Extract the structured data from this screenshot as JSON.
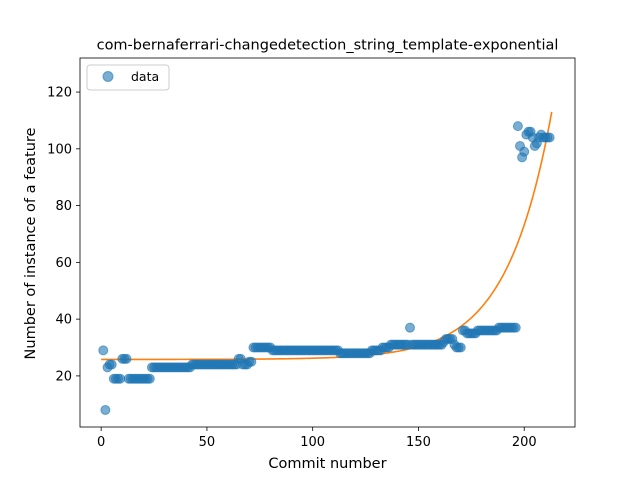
{
  "chart_data": {
    "type": "scatter",
    "title": "com-bernaferrari-changedetection_string_template-exponential",
    "xlabel": "Commit number",
    "ylabel": "Number of instance of a feature",
    "xlim": [
      -10,
      224
    ],
    "ylim": [
      2,
      132
    ],
    "xticks": [
      0,
      50,
      100,
      150,
      200
    ],
    "yticks": [
      20,
      40,
      60,
      80,
      100,
      120
    ],
    "xtick_labels": [
      "0",
      "50",
      "100",
      "150",
      "200"
    ],
    "ytick_labels": [
      "20",
      "40",
      "60",
      "80",
      "100",
      "120"
    ],
    "grid": false,
    "legend": {
      "placement": "top-left",
      "entries": [
        "data"
      ]
    },
    "colors": {
      "data": "#1f77b4",
      "fit": "#ff7f0e"
    },
    "series": [
      {
        "name": "data",
        "kind": "scatter",
        "points": [
          [
            1,
            29
          ],
          [
            2,
            8
          ],
          [
            3,
            23
          ],
          [
            4,
            24
          ],
          [
            5,
            24
          ],
          [
            6,
            19
          ],
          [
            7,
            19
          ],
          [
            8,
            19
          ],
          [
            9,
            19
          ],
          [
            10,
            26
          ],
          [
            11,
            26
          ],
          [
            12,
            26
          ],
          [
            13,
            19
          ],
          [
            14,
            19
          ],
          [
            15,
            19
          ],
          [
            16,
            19
          ],
          [
            17,
            19
          ],
          [
            18,
            19
          ],
          [
            19,
            19
          ],
          [
            20,
            19
          ],
          [
            21,
            19
          ],
          [
            22,
            19
          ],
          [
            23,
            19
          ],
          [
            24,
            23
          ],
          [
            25,
            23
          ],
          [
            26,
            23
          ],
          [
            27,
            23
          ],
          [
            28,
            23
          ],
          [
            29,
            23
          ],
          [
            30,
            23
          ],
          [
            31,
            23
          ],
          [
            32,
            23
          ],
          [
            33,
            23
          ],
          [
            34,
            23
          ],
          [
            35,
            23
          ],
          [
            36,
            23
          ],
          [
            37,
            23
          ],
          [
            38,
            23
          ],
          [
            39,
            23
          ],
          [
            40,
            23
          ],
          [
            41,
            23
          ],
          [
            42,
            23
          ],
          [
            43,
            24
          ],
          [
            44,
            24
          ],
          [
            45,
            24
          ],
          [
            46,
            24
          ],
          [
            47,
            24
          ],
          [
            48,
            24
          ],
          [
            49,
            24
          ],
          [
            50,
            24
          ],
          [
            51,
            24
          ],
          [
            52,
            24
          ],
          [
            53,
            24
          ],
          [
            54,
            24
          ],
          [
            55,
            24
          ],
          [
            56,
            24
          ],
          [
            57,
            24
          ],
          [
            58,
            24
          ],
          [
            59,
            24
          ],
          [
            60,
            24
          ],
          [
            61,
            24
          ],
          [
            62,
            24
          ],
          [
            63,
            24
          ],
          [
            64,
            24
          ],
          [
            65,
            26
          ],
          [
            66,
            26
          ],
          [
            67,
            24
          ],
          [
            68,
            24
          ],
          [
            69,
            24
          ],
          [
            70,
            25
          ],
          [
            71,
            25
          ],
          [
            72,
            30
          ],
          [
            73,
            30
          ],
          [
            74,
            30
          ],
          [
            75,
            30
          ],
          [
            76,
            30
          ],
          [
            77,
            30
          ],
          [
            78,
            30
          ],
          [
            79,
            30
          ],
          [
            80,
            30
          ],
          [
            81,
            29
          ],
          [
            82,
            29
          ],
          [
            83,
            29
          ],
          [
            84,
            29
          ],
          [
            85,
            29
          ],
          [
            86,
            29
          ],
          [
            87,
            29
          ],
          [
            88,
            29
          ],
          [
            89,
            29
          ],
          [
            90,
            29
          ],
          [
            91,
            29
          ],
          [
            92,
            29
          ],
          [
            93,
            29
          ],
          [
            94,
            29
          ],
          [
            95,
            29
          ],
          [
            96,
            29
          ],
          [
            97,
            29
          ],
          [
            98,
            29
          ],
          [
            99,
            29
          ],
          [
            100,
            29
          ],
          [
            101,
            29
          ],
          [
            102,
            29
          ],
          [
            103,
            29
          ],
          [
            104,
            29
          ],
          [
            105,
            29
          ],
          [
            106,
            29
          ],
          [
            107,
            29
          ],
          [
            108,
            29
          ],
          [
            109,
            29
          ],
          [
            110,
            29
          ],
          [
            111,
            29
          ],
          [
            112,
            29
          ],
          [
            113,
            28
          ],
          [
            114,
            28
          ],
          [
            115,
            28
          ],
          [
            116,
            28
          ],
          [
            117,
            28
          ],
          [
            118,
            28
          ],
          [
            119,
            28
          ],
          [
            120,
            28
          ],
          [
            121,
            28
          ],
          [
            122,
            28
          ],
          [
            123,
            28
          ],
          [
            124,
            28
          ],
          [
            125,
            28
          ],
          [
            126,
            28
          ],
          [
            127,
            28
          ],
          [
            128,
            29
          ],
          [
            129,
            29
          ],
          [
            130,
            29
          ],
          [
            131,
            29
          ],
          [
            132,
            29
          ],
          [
            133,
            30
          ],
          [
            134,
            30
          ],
          [
            135,
            30
          ],
          [
            136,
            30
          ],
          [
            137,
            31
          ],
          [
            138,
            31
          ],
          [
            139,
            31
          ],
          [
            140,
            31
          ],
          [
            141,
            31
          ],
          [
            142,
            31
          ],
          [
            143,
            31
          ],
          [
            144,
            31
          ],
          [
            145,
            31
          ],
          [
            146,
            37
          ],
          [
            147,
            31
          ],
          [
            148,
            31
          ],
          [
            149,
            31
          ],
          [
            150,
            31
          ],
          [
            151,
            31
          ],
          [
            152,
            31
          ],
          [
            153,
            31
          ],
          [
            154,
            31
          ],
          [
            155,
            31
          ],
          [
            156,
            31
          ],
          [
            157,
            31
          ],
          [
            158,
            31
          ],
          [
            159,
            31
          ],
          [
            160,
            31
          ],
          [
            161,
            31
          ],
          [
            162,
            32
          ],
          [
            163,
            33
          ],
          [
            164,
            33
          ],
          [
            165,
            33
          ],
          [
            166,
            33
          ],
          [
            167,
            31
          ],
          [
            168,
            30
          ],
          [
            169,
            30
          ],
          [
            170,
            30
          ],
          [
            171,
            36
          ],
          [
            172,
            36
          ],
          [
            173,
            35
          ],
          [
            174,
            35
          ],
          [
            175,
            35
          ],
          [
            176,
            35
          ],
          [
            177,
            35
          ],
          [
            178,
            36
          ],
          [
            179,
            36
          ],
          [
            180,
            36
          ],
          [
            181,
            36
          ],
          [
            182,
            36
          ],
          [
            183,
            36
          ],
          [
            184,
            36
          ],
          [
            185,
            36
          ],
          [
            186,
            36
          ],
          [
            187,
            36
          ],
          [
            188,
            37
          ],
          [
            189,
            37
          ],
          [
            190,
            37
          ],
          [
            191,
            37
          ],
          [
            192,
            37
          ],
          [
            193,
            37
          ],
          [
            194,
            37
          ],
          [
            195,
            37
          ],
          [
            196,
            37
          ],
          [
            197,
            108
          ],
          [
            198,
            101
          ],
          [
            199,
            97
          ],
          [
            200,
            99
          ],
          [
            201,
            105
          ],
          [
            202,
            106
          ],
          [
            203,
            106
          ],
          [
            204,
            104
          ],
          [
            205,
            101
          ],
          [
            206,
            102
          ],
          [
            207,
            104
          ],
          [
            208,
            105
          ],
          [
            209,
            104
          ],
          [
            210,
            104
          ],
          [
            211,
            104
          ],
          [
            212,
            104
          ]
        ]
      },
      {
        "kind": "line",
        "model": {
          "form": "a*exp(b*x)+c",
          "a": 0.004,
          "b": 0.0469,
          "c": 25.8,
          "x_start": 0,
          "x_end": 213
        }
      }
    ]
  }
}
